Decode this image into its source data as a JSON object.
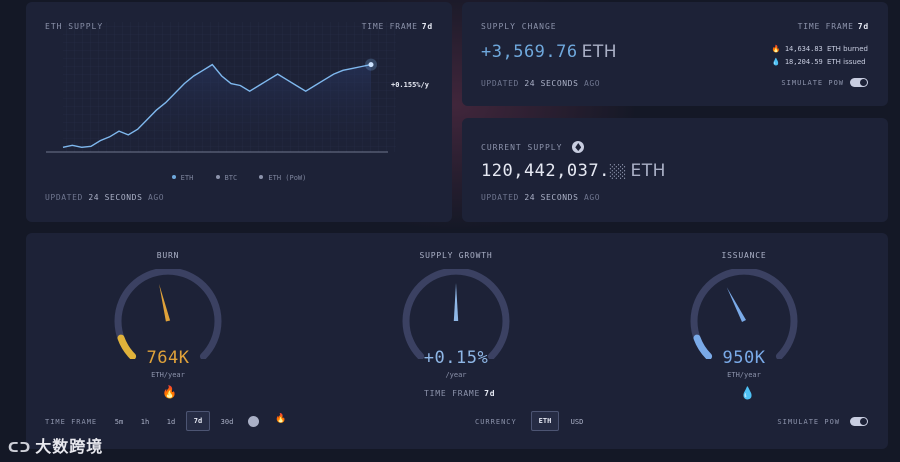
{
  "supply_card": {
    "title": "ETH SUPPLY",
    "time_frame_label": "TIME FRAME",
    "time_frame_value": "7d",
    "growth_label": "+0.155%/y",
    "legend": [
      {
        "label": "ETH",
        "color": "#6fa8dc"
      },
      {
        "label": "BTC",
        "color": "#8c93ab"
      },
      {
        "label": "ETH (PoW)",
        "color": "#8c93ab"
      }
    ],
    "updated_prefix": "UPDATED",
    "updated_value": "24 SECONDS",
    "updated_suffix": "AGO"
  },
  "chart_data": {
    "type": "line",
    "series": [
      {
        "name": "ETH",
        "values": [
          0.05,
          0.07,
          0.05,
          0.06,
          0.12,
          0.16,
          0.22,
          0.18,
          0.24,
          0.34,
          0.44,
          0.52,
          0.62,
          0.72,
          0.8,
          0.86,
          0.92,
          0.8,
          0.72,
          0.7,
          0.64,
          0.7,
          0.76,
          0.82,
          0.76,
          0.7,
          0.64,
          0.7,
          0.76,
          0.82,
          0.86,
          0.88,
          0.9,
          0.92
        ]
      }
    ],
    "ylim": [
      0,
      1
    ],
    "baseline": 0.0
  },
  "change_card": {
    "title": "SUPPLY CHANGE",
    "time_frame_label": "TIME FRAME",
    "time_frame_value": "7d",
    "value": "+3,569.76",
    "unit": "ETH",
    "burned_value": "14,634.83",
    "burned_label": "ETH burned",
    "issued_value": "18,204.59",
    "issued_label": "ETH issued",
    "updated_prefix": "UPDATED",
    "updated_value": "24 SECONDS",
    "updated_suffix": "AGO",
    "simulate_label": "SIMULATE PoW"
  },
  "current_card": {
    "title": "CURRENT SUPPLY",
    "value": "120,442,037.",
    "value_decimals": "░░",
    "unit": "ETH",
    "updated_prefix": "UPDATED",
    "updated_value": "24 SECONDS",
    "updated_suffix": "AGO"
  },
  "gauges": {
    "burn": {
      "title": "BURN",
      "value": "764K",
      "unit": "ETH/year",
      "level": 0.45,
      "color": "#e0a23a"
    },
    "growth": {
      "title": "SUPPLY GROWTH",
      "value": "+0.15%",
      "unit": "/year",
      "level": 0.5,
      "color": "#8fb7e6",
      "time_frame_label": "TIME FRAME",
      "time_frame_value": "7d"
    },
    "issuance": {
      "title": "ISSUANCE",
      "value": "950K",
      "unit": "ETH/year",
      "level": 0.4,
      "color": "#7aaae8"
    }
  },
  "controls": {
    "time_frame_label": "TIME FRAME",
    "time_frames": [
      "5m",
      "1h",
      "1d",
      "7d",
      "30d"
    ],
    "active_time_frame": "7d",
    "currency_label": "CURRENCY",
    "currencies": [
      "ETH",
      "USD"
    ],
    "active_currency": "ETH",
    "simulate_label": "SIMULATE PoW"
  },
  "watermark": "大数跨境"
}
